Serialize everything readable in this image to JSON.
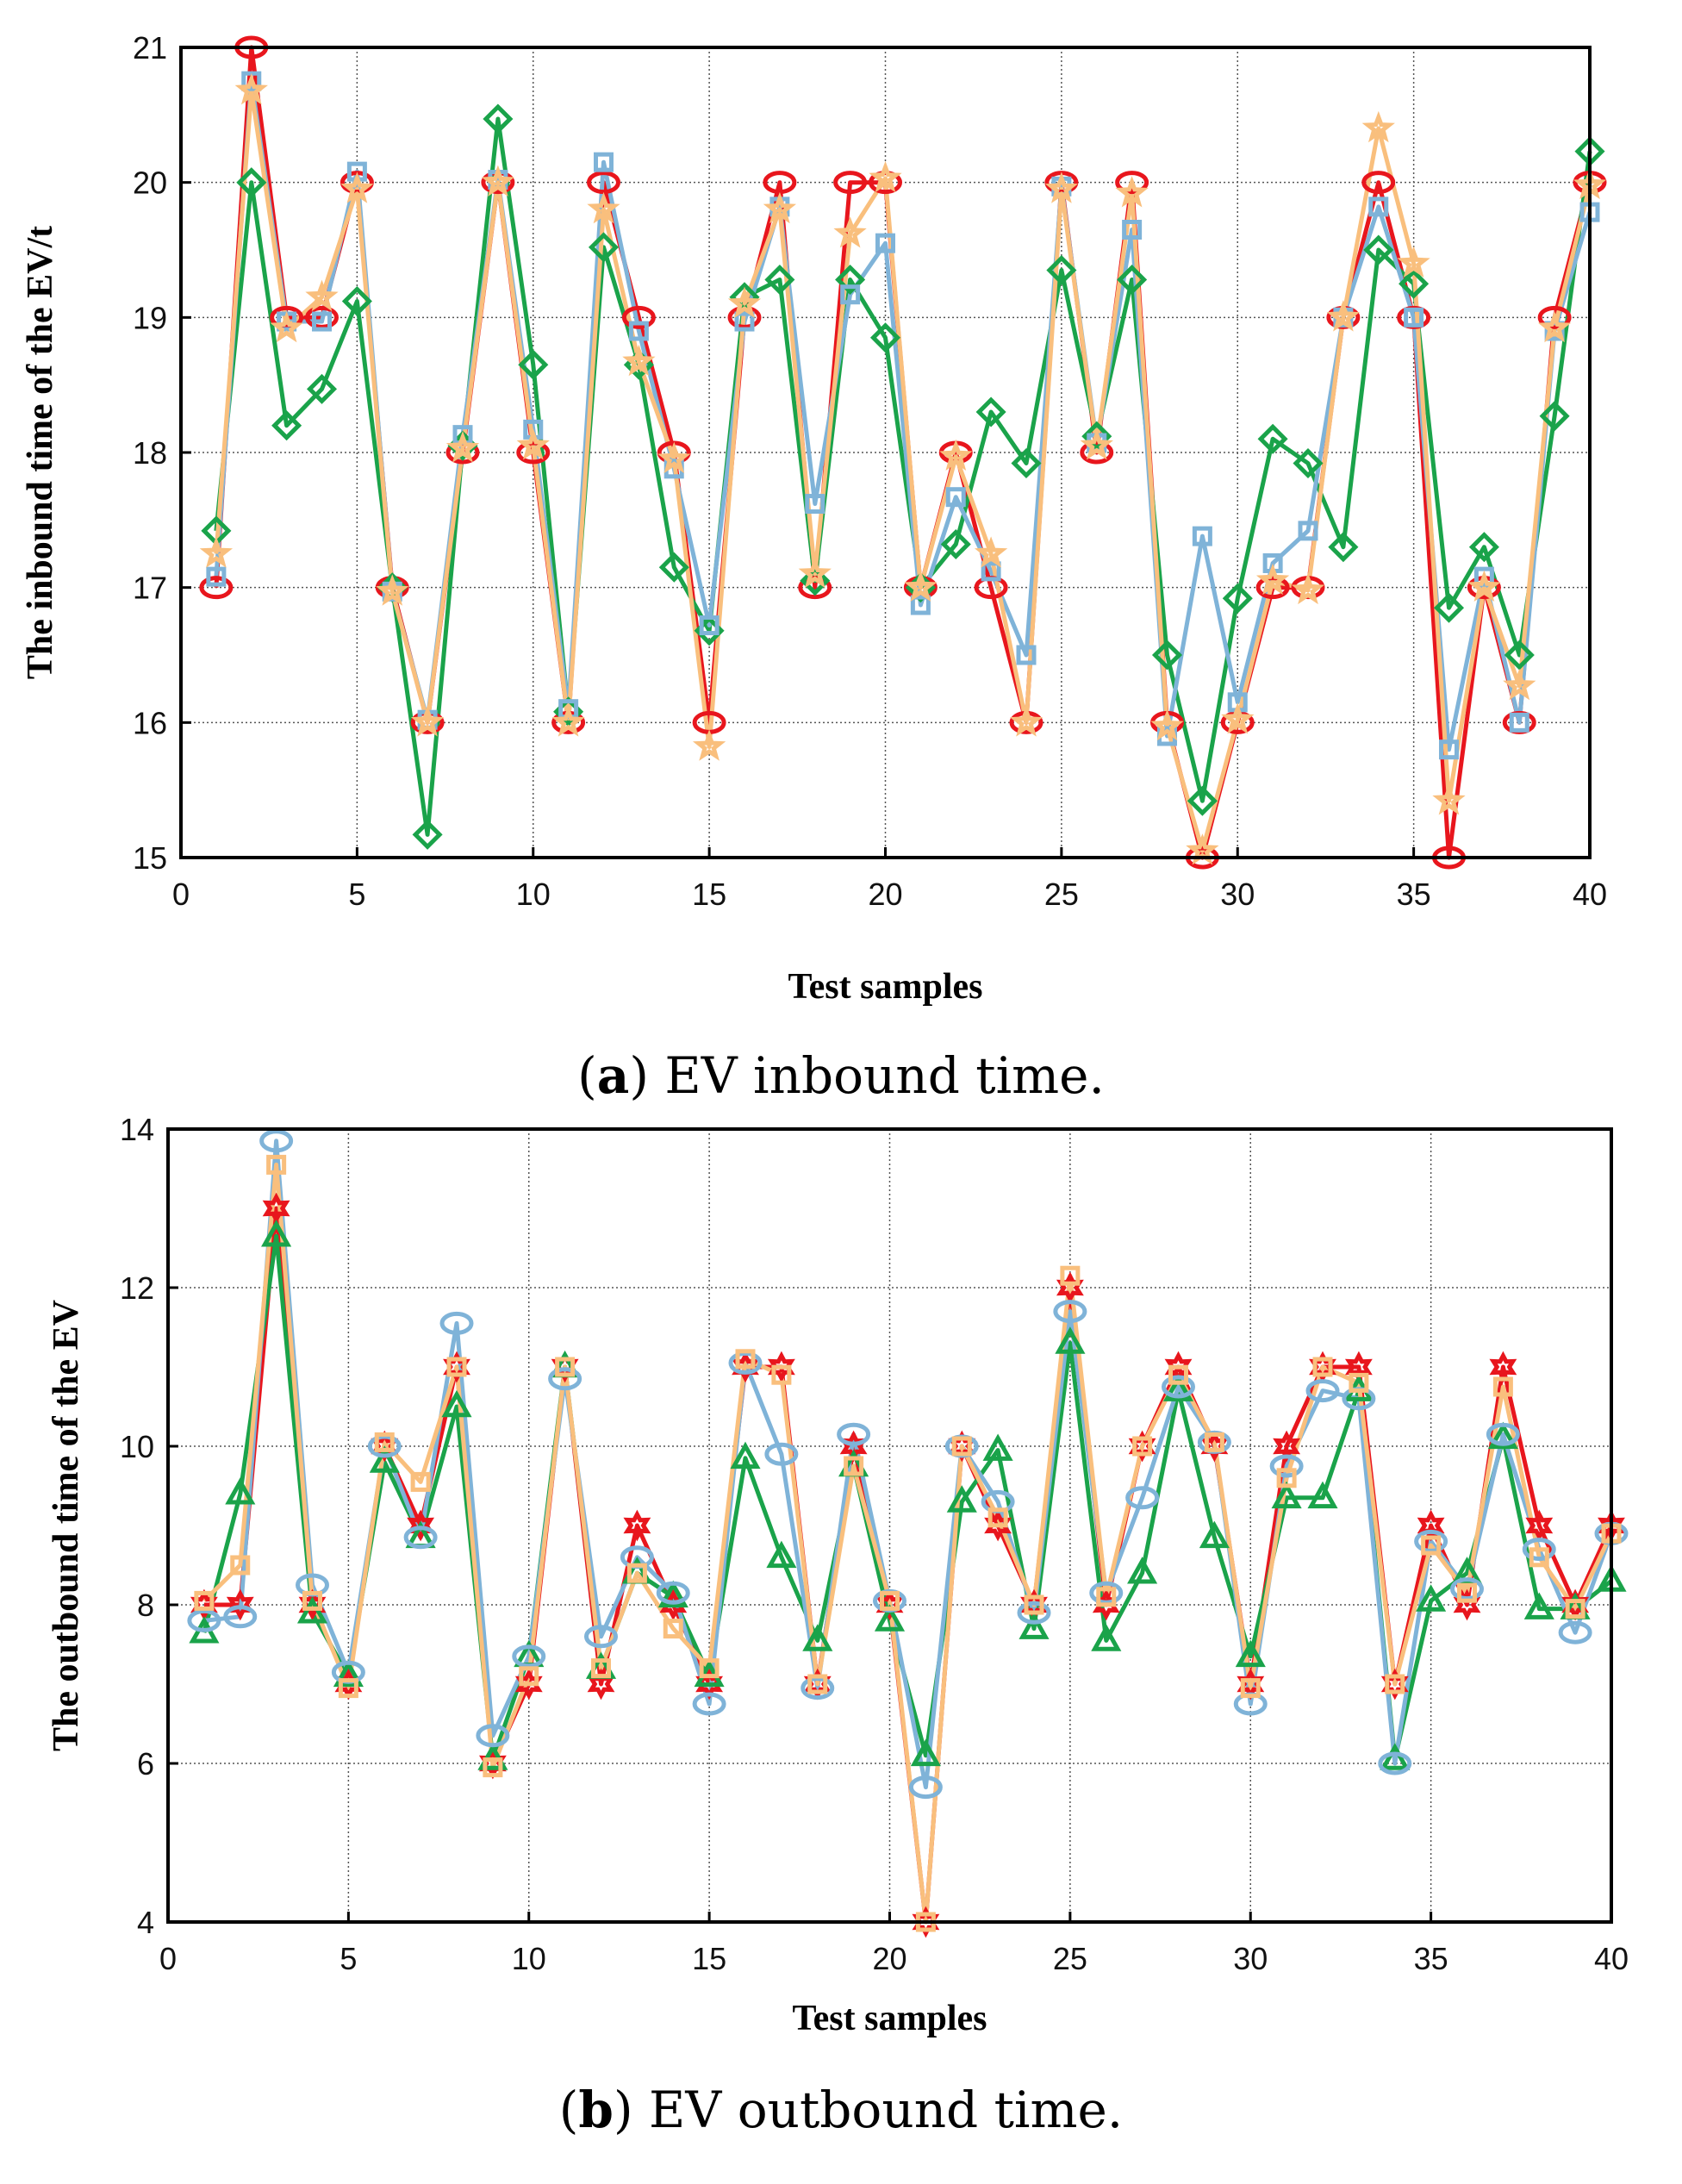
{
  "chart_data": [
    {
      "type": "line",
      "xlabel": "Test samples",
      "ylabel": "The inbound time of the EV/t",
      "xlim": [
        0,
        40
      ],
      "ylim": [
        15,
        21
      ],
      "xticks": [
        0,
        5,
        10,
        15,
        20,
        25,
        30,
        35,
        40
      ],
      "yticks": [
        15,
        16,
        17,
        18,
        19,
        20,
        21
      ],
      "grid": true,
      "caption_letter": "a",
      "caption_text": "EV inbound time.",
      "x": [
        1,
        2,
        3,
        4,
        5,
        6,
        7,
        8,
        9,
        10,
        11,
        12,
        13,
        14,
        15,
        16,
        17,
        18,
        19,
        20,
        21,
        22,
        23,
        24,
        25,
        26,
        27,
        28,
        29,
        30,
        31,
        32,
        33,
        34,
        35,
        36,
        37,
        38,
        39,
        40
      ],
      "series": [
        {
          "color": "#e8161d",
          "marker": "circle",
          "values": [
            17,
            21,
            19,
            19,
            20,
            17,
            16,
            18,
            20,
            18,
            16,
            20,
            19,
            18,
            16,
            19,
            20,
            17,
            20,
            20,
            17,
            18,
            17,
            16,
            20,
            18,
            20,
            16,
            15,
            16,
            17,
            17,
            19,
            20,
            19,
            15,
            17,
            16,
            19,
            20
          ]
        },
        {
          "color": "#1aa34a",
          "marker": "diamond",
          "values": [
            17.42,
            20,
            18.2,
            18.47,
            19.12,
            17,
            15.17,
            18.05,
            20.47,
            18.65,
            16.08,
            19.52,
            18.65,
            17.15,
            16.68,
            19.15,
            19.28,
            17.05,
            19.28,
            18.85,
            17,
            17.32,
            18.3,
            17.92,
            19.35,
            18.12,
            19.28,
            16.5,
            15.42,
            16.92,
            18.1,
            17.92,
            17.3,
            19.5,
            19.25,
            16.85,
            17.3,
            16.5,
            18.27,
            20.23
          ]
        },
        {
          "color": "#7fb3d8",
          "marker": "square",
          "values": [
            17.08,
            20.75,
            18.97,
            18.97,
            20.08,
            16.97,
            16.02,
            18.13,
            20.02,
            18.17,
            16.1,
            20.15,
            18.9,
            17.88,
            16.72,
            18.97,
            19.82,
            17.62,
            19.17,
            19.55,
            16.87,
            17.67,
            17.12,
            16.5,
            19.97,
            18.07,
            19.65,
            15.9,
            17.38,
            16.15,
            17.18,
            17.42,
            19,
            19.82,
            19,
            15.8,
            17.08,
            16,
            18.9,
            19.78
          ]
        },
        {
          "color": "#f9bf7d",
          "marker": "star",
          "values": [
            17.25,
            20.68,
            18.92,
            19.15,
            19.95,
            16.97,
            16,
            18.03,
            20,
            18.05,
            16,
            19.8,
            18.67,
            17.95,
            15.82,
            19.1,
            19.8,
            17.1,
            19.62,
            20.03,
            17,
            17.97,
            17.25,
            16,
            19.95,
            18.05,
            19.92,
            15.97,
            15.05,
            16.02,
            17.05,
            16.98,
            19,
            20.4,
            19.4,
            15.42,
            17,
            16.27,
            18.92,
            19.98
          ]
        }
      ]
    },
    {
      "type": "line",
      "xlabel": "Test samples",
      "ylabel": "The outbound time of the EV",
      "xlim": [
        0,
        40
      ],
      "ylim": [
        4,
        14
      ],
      "xticks": [
        0,
        5,
        10,
        15,
        20,
        25,
        30,
        35,
        40
      ],
      "yticks": [
        4,
        6,
        8,
        10,
        12,
        14
      ],
      "grid": true,
      "caption_letter": "b",
      "caption_text": "EV outbound time.",
      "x": [
        1,
        2,
        3,
        4,
        5,
        6,
        7,
        8,
        9,
        10,
        11,
        12,
        13,
        14,
        15,
        16,
        17,
        18,
        19,
        20,
        21,
        22,
        23,
        24,
        25,
        26,
        27,
        28,
        29,
        30,
        31,
        32,
        33,
        34,
        35,
        36,
        37,
        38,
        39,
        40
      ],
      "series": [
        {
          "color": "#e8161d",
          "marker": "hexagram",
          "values": [
            8,
            8,
            13,
            8,
            7,
            10,
            9,
            11,
            6,
            7,
            11,
            7,
            9,
            8,
            7,
            11,
            11,
            7,
            10,
            8,
            4,
            10,
            9,
            8,
            12,
            8,
            10,
            11,
            10,
            7,
            10,
            11,
            11,
            7,
            9,
            8,
            11,
            9,
            8,
            9
          ]
        },
        {
          "color": "#1aa34a",
          "marker": "triangle",
          "values": [
            7.65,
            9.4,
            12.65,
            7.9,
            7.1,
            9.8,
            8.85,
            10.5,
            6.05,
            7.35,
            11,
            7.2,
            8.4,
            8.1,
            7.1,
            9.85,
            8.6,
            7.55,
            9.75,
            7.8,
            6.1,
            9.3,
            9.95,
            7.7,
            11.3,
            7.55,
            8.4,
            10.7,
            8.85,
            7.35,
            9.35,
            9.35,
            10.7,
            6.05,
            8.05,
            8.4,
            10.1,
            7.95,
            7.95,
            8.3
          ]
        },
        {
          "color": "#7fb3d8",
          "marker": "circle",
          "values": [
            7.8,
            7.85,
            13.85,
            8.25,
            7.15,
            10,
            8.85,
            11.55,
            6.35,
            7.35,
            10.85,
            7.6,
            8.6,
            8.15,
            6.75,
            11.05,
            9.9,
            6.95,
            10.15,
            8.05,
            5.7,
            10,
            9.3,
            7.9,
            11.7,
            8.15,
            9.35,
            10.75,
            10.05,
            6.75,
            9.75,
            10.7,
            10.6,
            6,
            8.8,
            8.2,
            10.15,
            8.7,
            7.65,
            8.9
          ]
        },
        {
          "color": "#f9bf7d",
          "marker": "square",
          "values": [
            8.05,
            8.5,
            13.55,
            8.05,
            6.95,
            10.05,
            9.55,
            11,
            5.95,
            7.1,
            11,
            7.2,
            8.4,
            7.7,
            7.2,
            11.1,
            10.9,
            7,
            9.75,
            8.05,
            4,
            10,
            9.1,
            8,
            12.15,
            8.1,
            10,
            10.9,
            10.05,
            6.95,
            9.6,
            11,
            10.8,
            7,
            8.75,
            8.15,
            10.75,
            8.6,
            7.95,
            8.9
          ]
        }
      ]
    }
  ]
}
